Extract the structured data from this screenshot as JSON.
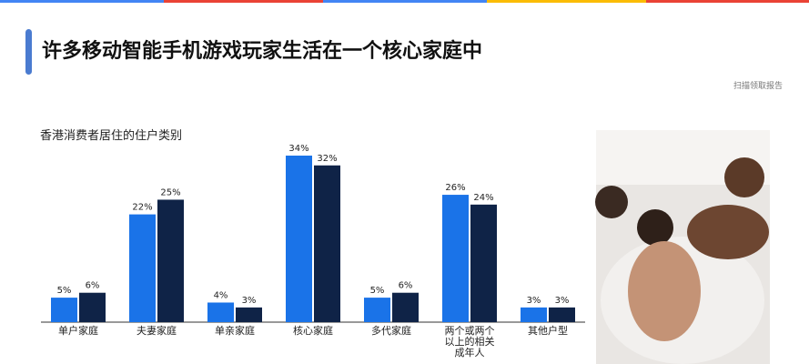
{
  "title": "许多移动智能手机游戏玩家生活在一个核心家庭中",
  "note": "扫描领取报告",
  "chart_data": {
    "type": "bar",
    "subtitle": "香港消费者居住的住户类别",
    "categories": [
      "单户家庭",
      "夫妻家庭",
      "单亲家庭",
      "核心家庭",
      "多代家庭",
      "两个或两个以上的相关成年人",
      "其他户型"
    ],
    "series": [
      {
        "color": "#1a73e8",
        "values": [
          5,
          22,
          4,
          34,
          5,
          26,
          3
        ],
        "value_labels": [
          "5%",
          "22%",
          "4%",
          "34%",
          "5%",
          "26%",
          "3%"
        ]
      },
      {
        "color": "#0f2347",
        "values": [
          6,
          25,
          3,
          32,
          6,
          24,
          3
        ],
        "value_labels": [
          "6%",
          "25%",
          "3%",
          "32%",
          "6%",
          "24%",
          "3%"
        ]
      }
    ]
  }
}
